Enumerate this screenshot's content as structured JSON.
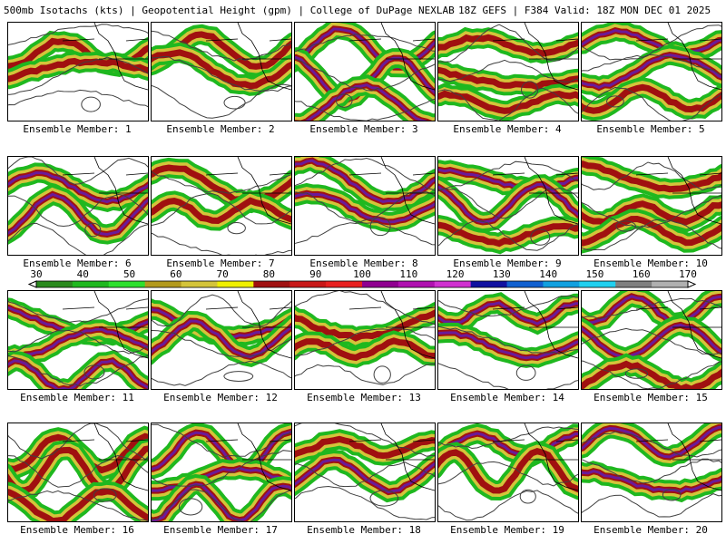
{
  "header": {
    "left": "500mb Isotachs (kts) | Geopotential Height (gpm) | College of DuPage NEXLAB",
    "right": "18Z GEFS | F384 Valid: 18Z MON DEC 01 2025"
  },
  "panels": [
    {
      "label": "Ensemble Member: 1"
    },
    {
      "label": "Ensemble Member: 2"
    },
    {
      "label": "Ensemble Member: 3"
    },
    {
      "label": "Ensemble Member: 4"
    },
    {
      "label": "Ensemble Member: 5"
    },
    {
      "label": "Ensemble Member: 6"
    },
    {
      "label": "Ensemble Member: 7"
    },
    {
      "label": "Ensemble Member: 8"
    },
    {
      "label": "Ensemble Member: 9"
    },
    {
      "label": "Ensemble Member: 10"
    },
    {
      "label": "Ensemble Member: 11"
    },
    {
      "label": "Ensemble Member: 12"
    },
    {
      "label": "Ensemble Member: 13"
    },
    {
      "label": "Ensemble Member: 14"
    },
    {
      "label": "Ensemble Member: 15"
    },
    {
      "label": "Ensemble Member: 16"
    },
    {
      "label": "Ensemble Member: 17"
    },
    {
      "label": "Ensemble Member: 18"
    },
    {
      "label": "Ensemble Member: 19"
    },
    {
      "label": "Ensemble Member: 20"
    }
  ],
  "colorbar": {
    "ticks": [
      "30",
      "40",
      "50",
      "60",
      "70",
      "80",
      "90",
      "100",
      "110",
      "120",
      "130",
      "140",
      "150",
      "160",
      "170"
    ],
    "colors": [
      "#2a8a1e",
      "#1fb81f",
      "#2ee02e",
      "#b39a1e",
      "#d4c43a",
      "#f0f000",
      "#a01010",
      "#c81818",
      "#e82020",
      "#900090",
      "#b010b0",
      "#d030d0",
      "#1010a0",
      "#1060d0",
      "#10a0e0",
      "#20d0f0",
      "#808080",
      "#b0b0b0"
    ]
  },
  "map_colors": {
    "land_outline": "#000000",
    "height_contour": "#404040",
    "jet_low": "#1fb81f",
    "jet_mid": "#d4c43a",
    "jet_high": "#a01010",
    "jet_core": "#6a1a9a"
  }
}
